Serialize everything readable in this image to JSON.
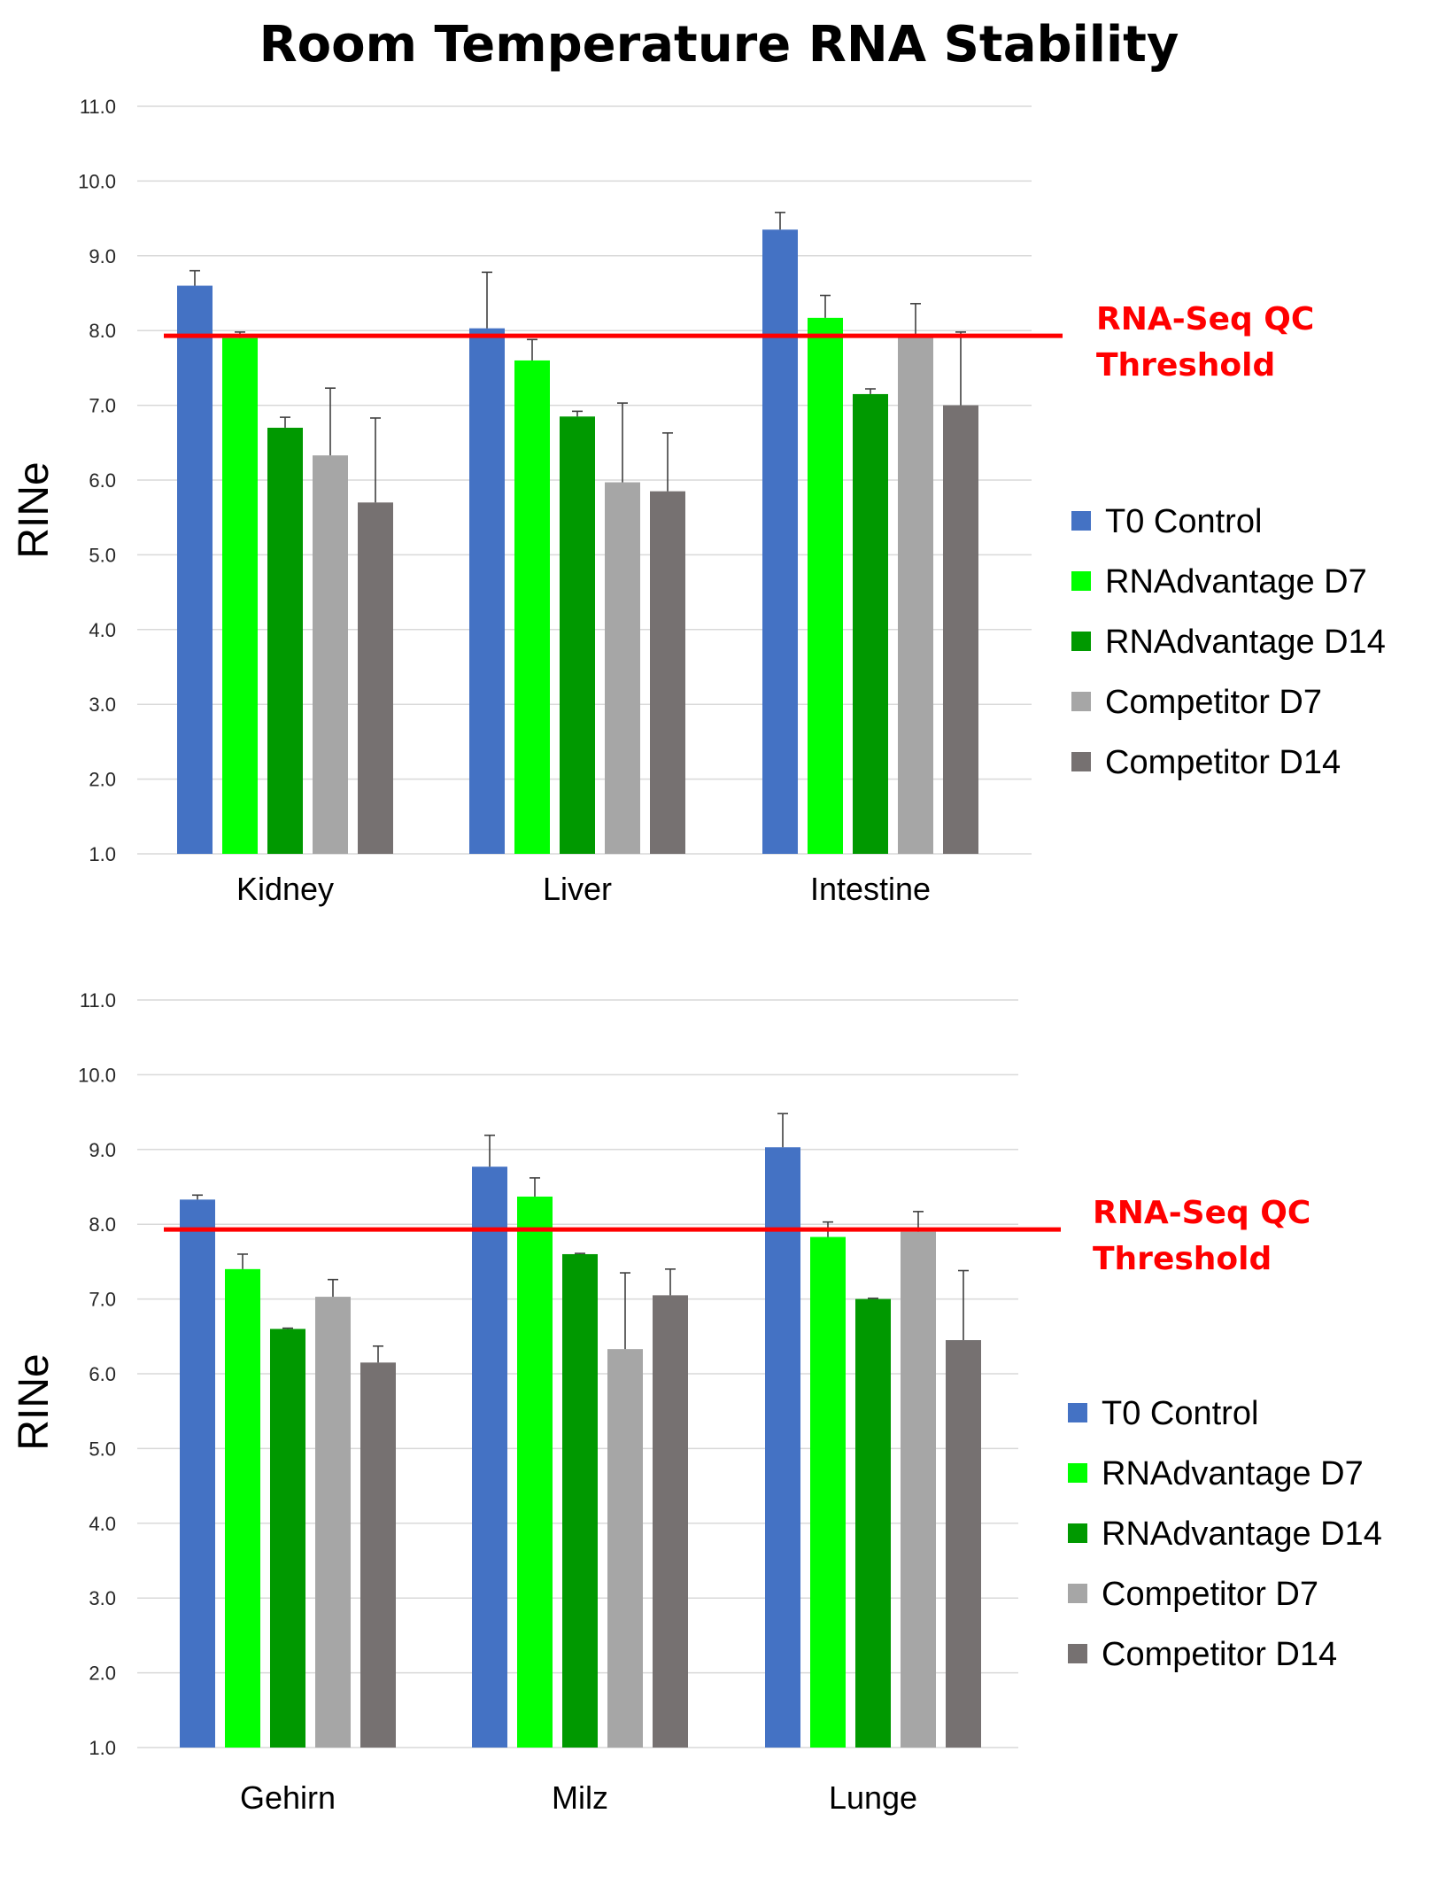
{
  "title": "Room Temperature RNA Stability",
  "colors": {
    "T0 Control": "#4472c4",
    "RNAdvantage D7": "#00ff00",
    "RNAdvantage D14": "#009900",
    "Competitor D7": "#a6a6a6",
    "Competitor D14": "#767171",
    "threshold": "#ff0000"
  },
  "chart_data": [
    {
      "type": "bar",
      "title": "Room Temperature RNA Stability",
      "ylabel": "RINe",
      "xlabel": "",
      "ylim": [
        1.0,
        11.0
      ],
      "yticks": [
        "1.0",
        "2.0",
        "3.0",
        "4.0",
        "5.0",
        "6.0",
        "7.0",
        "8.0",
        "9.0",
        "10.0",
        "11.0"
      ],
      "grid": true,
      "legend_position": "right",
      "categories": [
        "Kidney",
        "Liver",
        "Intestine"
      ],
      "series": [
        {
          "name": "T0 Control",
          "values": [
            8.6,
            8.03,
            9.35
          ],
          "errors": [
            0.2,
            0.75,
            0.23
          ]
        },
        {
          "name": "RNAdvantage D7",
          "values": [
            7.9,
            7.6,
            8.17
          ],
          "errors": [
            0.08,
            0.28,
            0.3
          ]
        },
        {
          "name": "RNAdvantage D14",
          "values": [
            6.7,
            6.85,
            7.15
          ],
          "errors": [
            0.14,
            0.07,
            0.07
          ]
        },
        {
          "name": "Competitor D7",
          "values": [
            6.33,
            5.97,
            7.93
          ],
          "errors": [
            0.9,
            1.06,
            0.43
          ]
        },
        {
          "name": "Competitor D14",
          "values": [
            5.7,
            5.85,
            7.0
          ],
          "errors": [
            1.13,
            0.78,
            0.98
          ]
        }
      ],
      "threshold": {
        "value": 7.93,
        "label_line1": "RNA-Seq QC",
        "label_line2": "Threshold"
      }
    },
    {
      "type": "bar",
      "title": "",
      "ylabel": "RINe",
      "xlabel": "",
      "ylim": [
        1.0,
        11.0
      ],
      "yticks": [
        "1.0",
        "2.0",
        "3.0",
        "4.0",
        "5.0",
        "6.0",
        "7.0",
        "8.0",
        "9.0",
        "10.0",
        "11.0"
      ],
      "grid": true,
      "legend_position": "right",
      "categories": [
        "Gehirn",
        "Milz",
        "Lunge"
      ],
      "series": [
        {
          "name": "T0 Control",
          "values": [
            8.33,
            8.77,
            9.03
          ],
          "errors": [
            0.06,
            0.42,
            0.45
          ]
        },
        {
          "name": "RNAdvantage D7",
          "values": [
            7.4,
            8.37,
            7.83
          ],
          "errors": [
            0.2,
            0.25,
            0.2
          ]
        },
        {
          "name": "RNAdvantage D14",
          "values": [
            6.6,
            7.6,
            7.0
          ],
          "errors": [
            0.01,
            0.01,
            0.01
          ]
        },
        {
          "name": "Competitor D7",
          "values": [
            7.03,
            6.33,
            7.9
          ],
          "errors": [
            0.23,
            1.02,
            0.27
          ]
        },
        {
          "name": "Competitor D14",
          "values": [
            6.15,
            7.05,
            6.45
          ],
          "errors": [
            0.22,
            0.35,
            0.93
          ]
        }
      ],
      "threshold": {
        "value": 7.93,
        "label_line1": "RNA-Seq QC",
        "label_line2": "Threshold"
      }
    }
  ]
}
